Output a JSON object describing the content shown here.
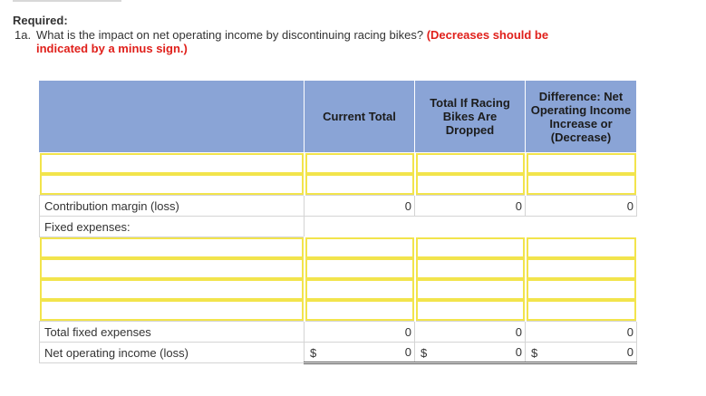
{
  "required_label": "Required:",
  "question": {
    "number": "1a.",
    "text": "What is the impact on net operating income by discontinuing racing bikes?",
    "note_line1": "(Decreases should be",
    "note_line2": "indicated by a minus sign.)"
  },
  "table": {
    "headers": {
      "label": "",
      "current_total": "Current Total",
      "if_dropped": "Total If Racing Bikes Are Dropped",
      "difference": "Difference: Net Operating Income Increase or (Decrease)"
    },
    "rows": {
      "contribution_margin": {
        "label": "Contribution margin (loss)",
        "current": "0",
        "dropped": "0",
        "difference": "0"
      },
      "fixed_expenses": {
        "label": "Fixed expenses:"
      },
      "total_fixed": {
        "label": "Total fixed expenses",
        "current": "0",
        "dropped": "0",
        "difference": "0"
      },
      "net_operating_income": {
        "label": "Net operating income (loss)",
        "currency": "$",
        "current": "0",
        "dropped": "0",
        "difference": "0"
      }
    }
  },
  "colors": {
    "header_bg": "#8aa4d6",
    "input_border": "#f2e44c",
    "note_red": "#e0201b"
  }
}
